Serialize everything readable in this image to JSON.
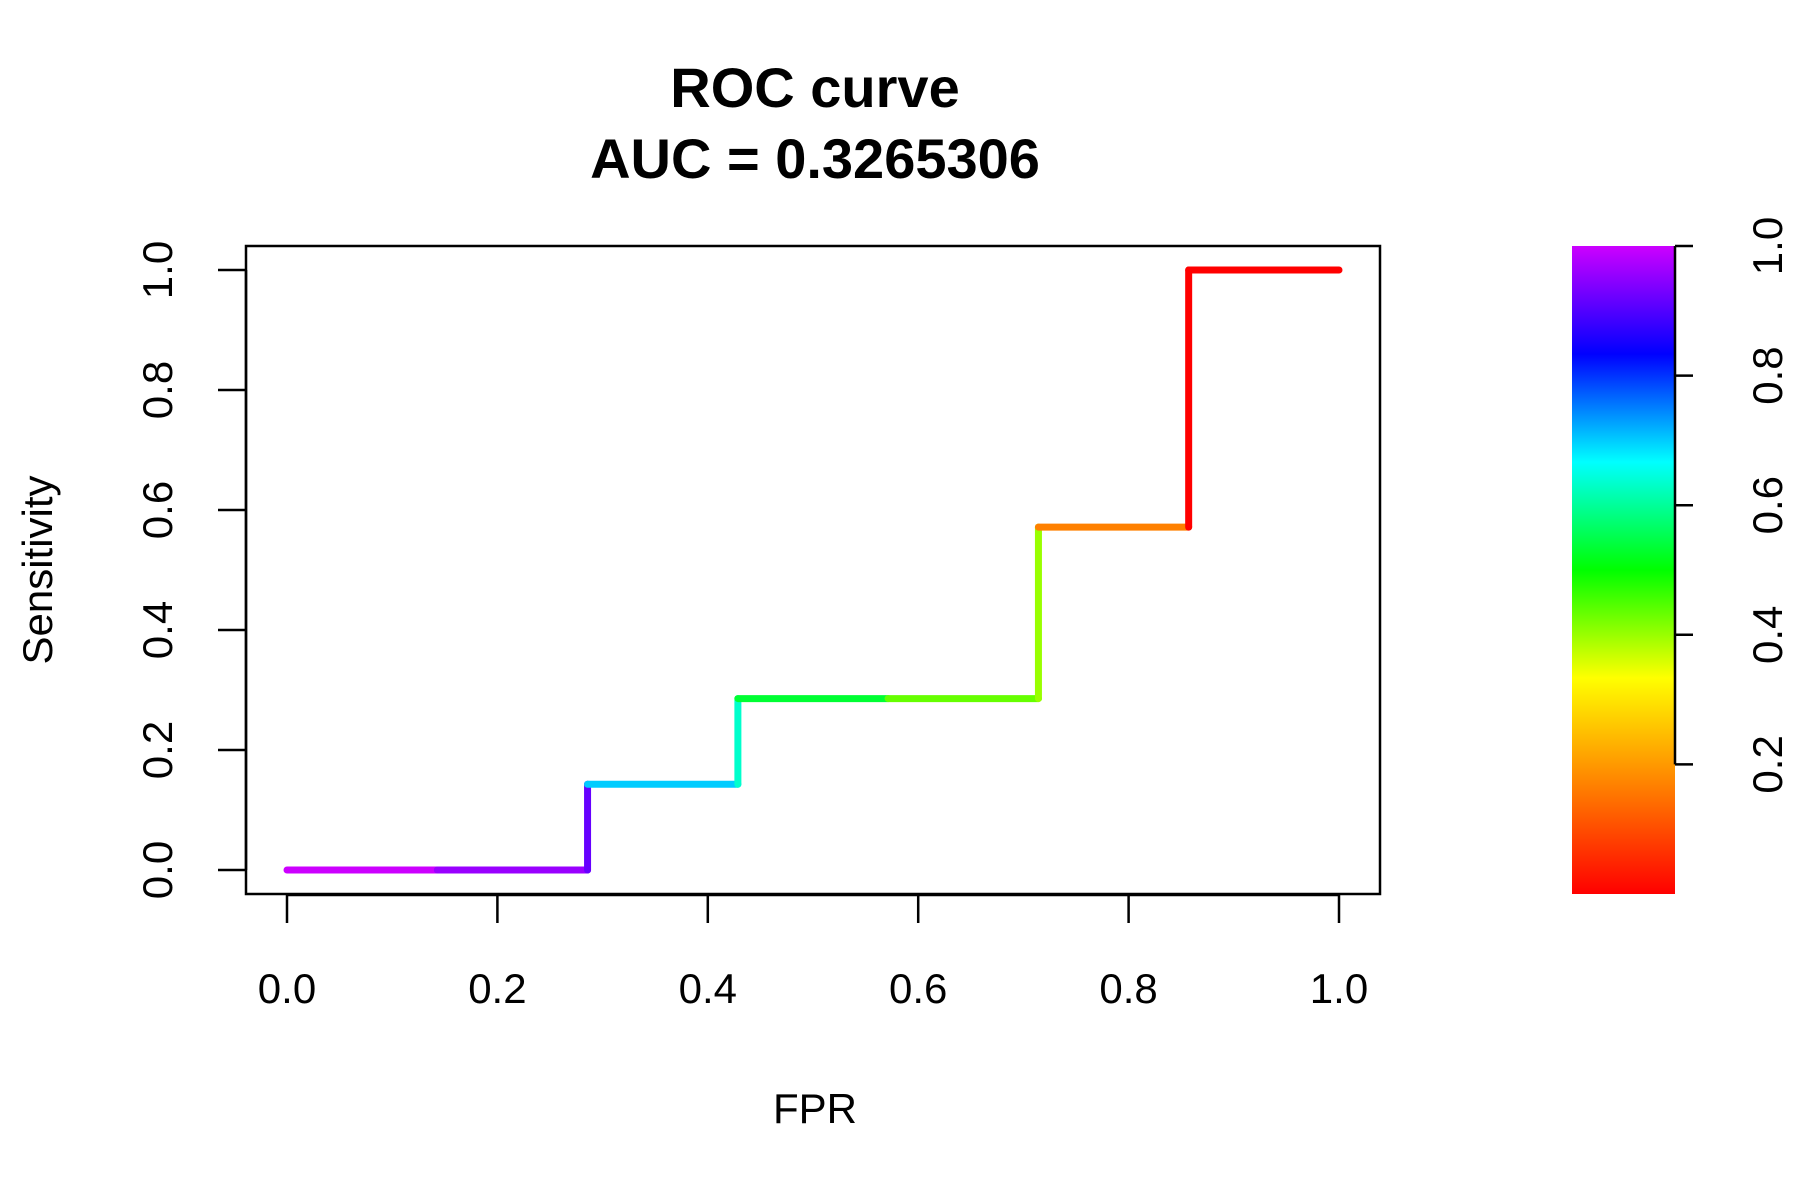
{
  "chart_data": {
    "type": "line",
    "title": "ROC curve",
    "subtitle": "AUC = 0.3265306",
    "xlabel": "FPR",
    "ylabel": "Sensitivity",
    "xlim": [
      0,
      1
    ],
    "ylim": [
      0,
      1
    ],
    "grid": false,
    "legend": "none",
    "x_ticks": [
      "0.0",
      "0.2",
      "0.4",
      "0.6",
      "0.8",
      "1.0"
    ],
    "y_ticks": [
      "0.0",
      "0.2",
      "0.4",
      "0.6",
      "0.8",
      "1.0"
    ],
    "segments": [
      {
        "x": [
          0.0,
          0.1429
        ],
        "y": [
          0.0,
          0.0
        ],
        "color": "#cc00ff"
      },
      {
        "x": [
          0.1429,
          0.2857
        ],
        "y": [
          0.0,
          0.0
        ],
        "color": "#9900ff"
      },
      {
        "x": [
          0.2857,
          0.2857
        ],
        "y": [
          0.0,
          0.1429
        ],
        "color": "#6600ff"
      },
      {
        "x": [
          0.2857,
          0.4286
        ],
        "y": [
          0.1429,
          0.1429
        ],
        "color": "#00ccff"
      },
      {
        "x": [
          0.4286,
          0.4286
        ],
        "y": [
          0.1429,
          0.2857
        ],
        "color": "#00ffcc"
      },
      {
        "x": [
          0.4286,
          0.5714
        ],
        "y": [
          0.2857,
          0.2857
        ],
        "color": "#00ff33"
      },
      {
        "x": [
          0.5714,
          0.7143
        ],
        "y": [
          0.2857,
          0.2857
        ],
        "color": "#66ff00"
      },
      {
        "x": [
          0.7143,
          0.7143
        ],
        "y": [
          0.2857,
          0.5714
        ],
        "color": "#99ff00"
      },
      {
        "x": [
          0.7143,
          0.8571
        ],
        "y": [
          0.5714,
          0.5714
        ],
        "color": "#ff8000"
      },
      {
        "x": [
          0.8571,
          0.8571
        ],
        "y": [
          0.5714,
          1.0
        ],
        "color": "#ff0000"
      },
      {
        "x": [
          0.8571,
          1.0
        ],
        "y": [
          1.0,
          1.0
        ],
        "color": "#ff0000"
      }
    ],
    "colorbar": {
      "range": [
        0,
        1
      ],
      "ticks": [
        "0.2",
        "0.4",
        "0.6",
        "0.8",
        "1.0"
      ],
      "tick_values": [
        0.2,
        0.4,
        0.6,
        0.8,
        1.0
      ],
      "palette": [
        "#ff0000",
        "#ff8000",
        "#ffff00",
        "#00ff00",
        "#00ffff",
        "#0000ff",
        "#cc00ff"
      ]
    }
  }
}
